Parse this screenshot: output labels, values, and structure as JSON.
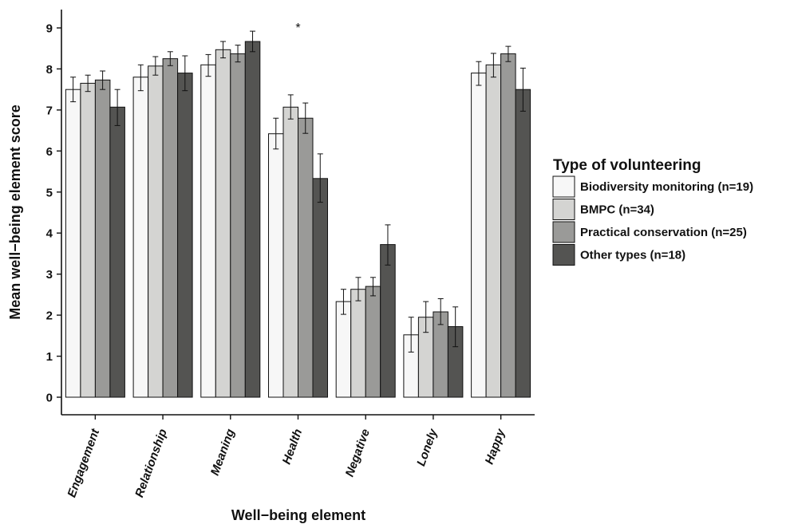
{
  "chart_data": {
    "type": "bar",
    "xlabel": "Well−being element",
    "ylabel": "Mean well−being element score",
    "ylim": [
      0,
      9
    ],
    "yticks": [
      0,
      1,
      2,
      3,
      4,
      5,
      6,
      7,
      8,
      9
    ],
    "categories": [
      "Engagement",
      "Relationship",
      "Meaning",
      "Health",
      "Negative",
      "Lonely",
      "Happy"
    ],
    "legend": {
      "title": "Type of volunteering",
      "placement": "right"
    },
    "annotations": [
      {
        "text": "*",
        "category": "Health"
      }
    ],
    "grid": false,
    "series": [
      {
        "name": "Biodiversity monitoring (n=19)",
        "color": "#f7f7f7",
        "values": [
          7.5,
          7.8,
          8.1,
          6.42,
          2.33,
          1.52,
          7.9
        ],
        "err_low": [
          7.2,
          7.47,
          7.82,
          6.05,
          2.02,
          1.1,
          7.6
        ],
        "err_high": [
          7.8,
          8.1,
          8.35,
          6.8,
          2.63,
          1.95,
          8.18
        ]
      },
      {
        "name": "BMPC (n=34)",
        "color": "#d4d4d2",
        "values": [
          7.65,
          8.07,
          8.47,
          7.07,
          2.63,
          1.95,
          8.1
        ],
        "err_low": [
          7.45,
          7.85,
          8.27,
          6.78,
          2.35,
          1.58,
          7.8
        ],
        "err_high": [
          7.85,
          8.3,
          8.67,
          7.37,
          2.92,
          2.33,
          8.38
        ]
      },
      {
        "name": "Practical conservation (n=25)",
        "color": "#9a9a98",
        "values": [
          7.73,
          8.25,
          8.37,
          6.8,
          2.7,
          2.08,
          8.37
        ],
        "err_low": [
          7.5,
          8.08,
          8.17,
          6.43,
          2.47,
          1.77,
          8.18
        ],
        "err_high": [
          7.95,
          8.42,
          8.58,
          7.17,
          2.92,
          2.4,
          8.55
        ]
      },
      {
        "name": "Other types (n=18)",
        "color": "#545452",
        "values": [
          7.07,
          7.9,
          8.67,
          5.33,
          3.72,
          1.72,
          7.5
        ],
        "err_low": [
          6.62,
          7.47,
          8.42,
          4.75,
          3.22,
          1.23,
          6.97
        ],
        "err_high": [
          7.5,
          8.32,
          8.92,
          5.93,
          4.2,
          2.2,
          8.02
        ]
      }
    ]
  }
}
